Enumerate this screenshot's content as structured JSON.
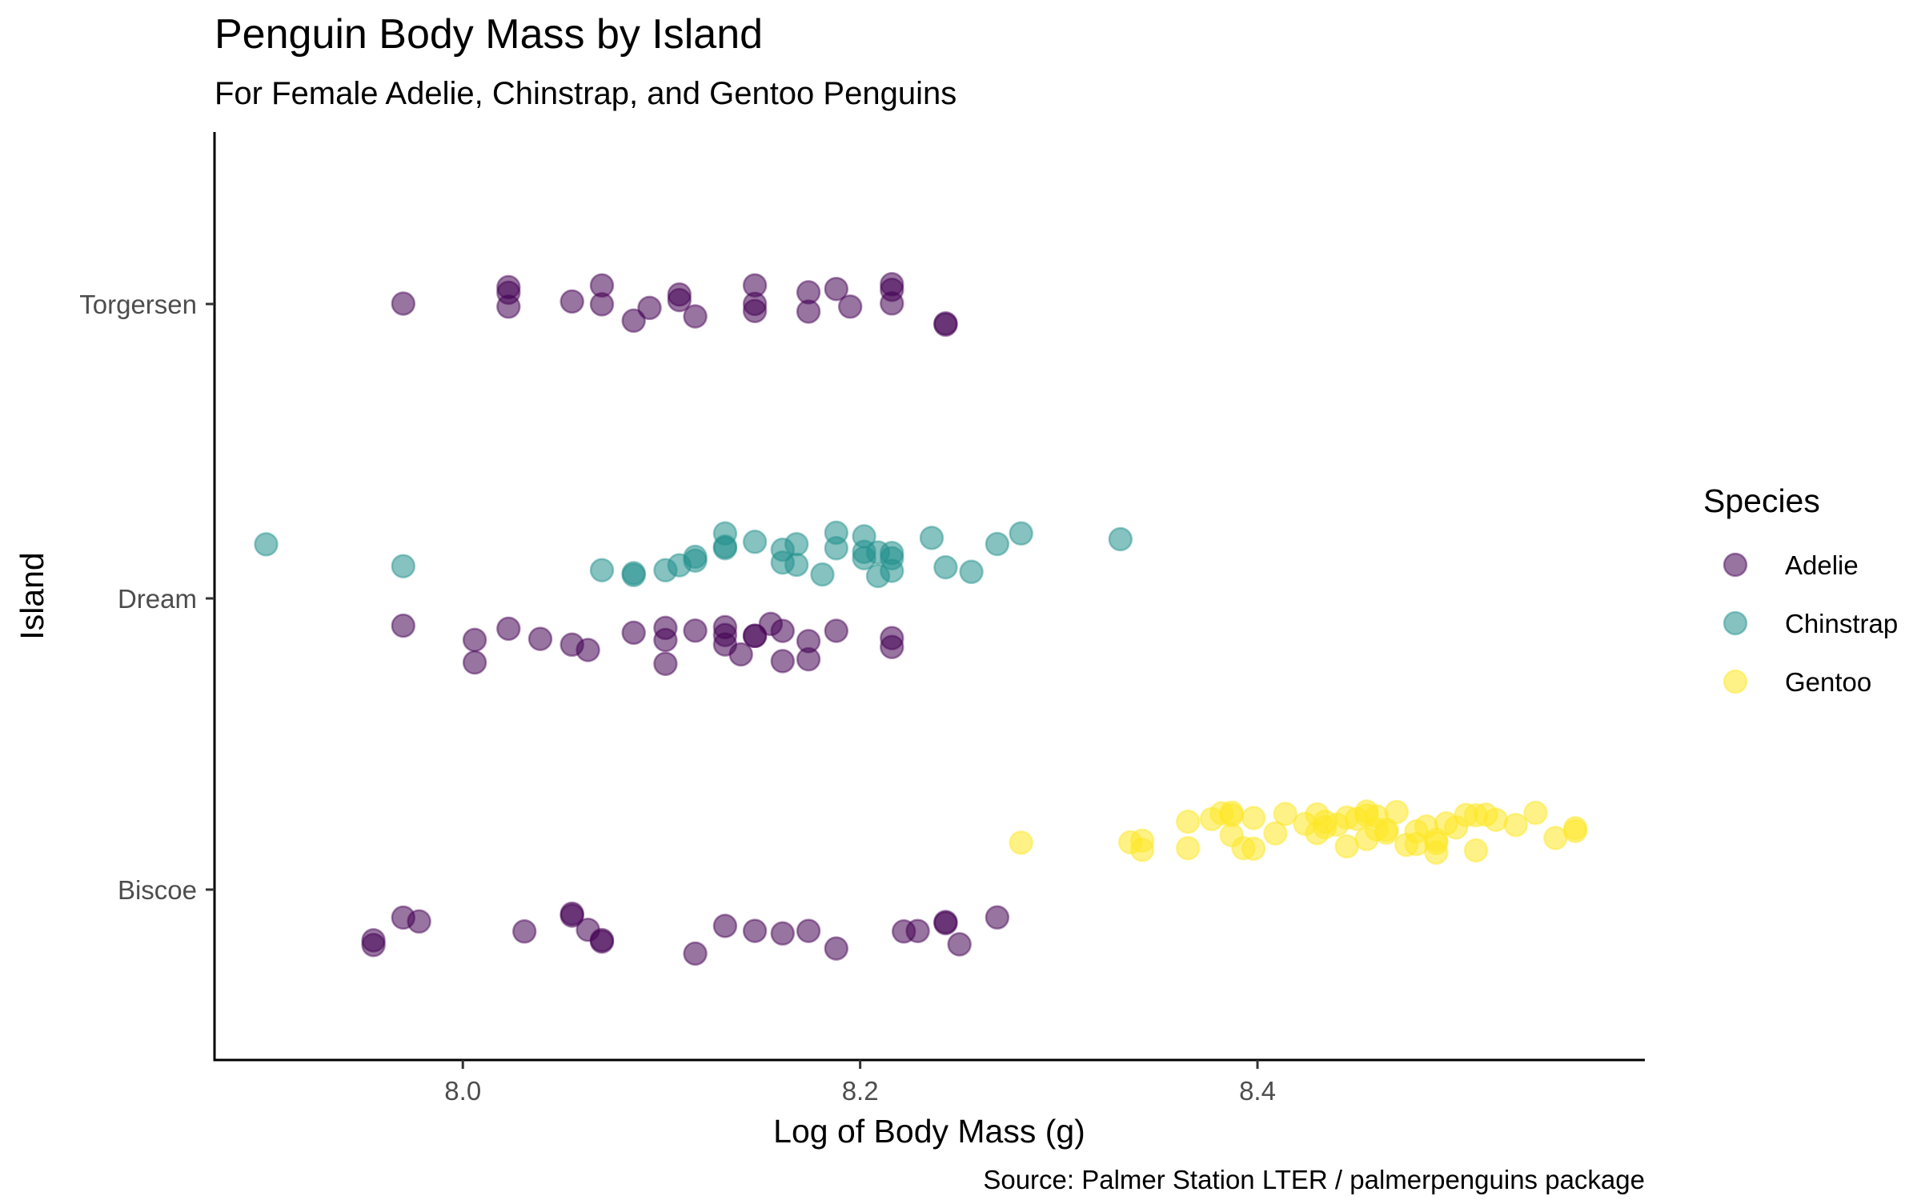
{
  "chart_data": {
    "type": "scatter",
    "title": "Penguin Body Mass by Island",
    "subtitle": "For Female Adelie, Chinstrap, and Gentoo Penguins",
    "xlabel": "Log of Body Mass (g)",
    "ylabel": "Island",
    "caption": "Source: Palmer Station LTER / palmerpenguins package",
    "xlim": [
      7.875,
      8.595
    ],
    "x_ticks": [
      "8.0",
      "8.2",
      "8.4"
    ],
    "x_tick_values": [
      8.0,
      8.2,
      8.4
    ],
    "categories": [
      "Torgersen",
      "Dream",
      "Biscoe"
    ],
    "grid": false,
    "legend": {
      "title": "Species",
      "position": "right"
    },
    "colors": {
      "Adelie": "#440154",
      "Chinstrap": "#21908C",
      "Gentoo": "#FDE725"
    },
    "point_alpha": 0.55,
    "series": [
      {
        "name": "Adelie",
        "color": "#440154",
        "points": [
          {
            "x": 7.97,
            "y": "Torgersen"
          },
          {
            "x": 8.023,
            "y": "Torgersen"
          },
          {
            "x": 8.023,
            "y": "Torgersen"
          },
          {
            "x": 8.023,
            "y": "Torgersen"
          },
          {
            "x": 8.055,
            "y": "Torgersen"
          },
          {
            "x": 8.07,
            "y": "Torgersen"
          },
          {
            "x": 8.07,
            "y": "Torgersen"
          },
          {
            "x": 8.086,
            "y": "Torgersen"
          },
          {
            "x": 8.094,
            "y": "Torgersen"
          },
          {
            "x": 8.109,
            "y": "Torgersen"
          },
          {
            "x": 8.109,
            "y": "Torgersen"
          },
          {
            "x": 8.117,
            "y": "Torgersen"
          },
          {
            "x": 8.147,
            "y": "Torgersen"
          },
          {
            "x": 8.147,
            "y": "Torgersen"
          },
          {
            "x": 8.147,
            "y": "Torgersen"
          },
          {
            "x": 8.174,
            "y": "Torgersen"
          },
          {
            "x": 8.174,
            "y": "Torgersen"
          },
          {
            "x": 8.188,
            "y": "Torgersen"
          },
          {
            "x": 8.195,
            "y": "Torgersen"
          },
          {
            "x": 8.216,
            "y": "Torgersen"
          },
          {
            "x": 8.216,
            "y": "Torgersen"
          },
          {
            "x": 8.216,
            "y": "Torgersen"
          },
          {
            "x": 8.243,
            "y": "Torgersen"
          },
          {
            "x": 8.243,
            "y": "Torgersen"
          },
          {
            "x": 7.97,
            "y": "Dream"
          },
          {
            "x": 8.006,
            "y": "Dream"
          },
          {
            "x": 8.006,
            "y": "Dream"
          },
          {
            "x": 8.023,
            "y": "Dream"
          },
          {
            "x": 8.039,
            "y": "Dream"
          },
          {
            "x": 8.055,
            "y": "Dream"
          },
          {
            "x": 8.063,
            "y": "Dream"
          },
          {
            "x": 8.086,
            "y": "Dream"
          },
          {
            "x": 8.102,
            "y": "Dream"
          },
          {
            "x": 8.102,
            "y": "Dream"
          },
          {
            "x": 8.102,
            "y": "Dream"
          },
          {
            "x": 8.117,
            "y": "Dream"
          },
          {
            "x": 8.132,
            "y": "Dream"
          },
          {
            "x": 8.132,
            "y": "Dream"
          },
          {
            "x": 8.132,
            "y": "Dream"
          },
          {
            "x": 8.14,
            "y": "Dream"
          },
          {
            "x": 8.147,
            "y": "Dream"
          },
          {
            "x": 8.147,
            "y": "Dream"
          },
          {
            "x": 8.155,
            "y": "Dream"
          },
          {
            "x": 8.161,
            "y": "Dream"
          },
          {
            "x": 8.161,
            "y": "Dream"
          },
          {
            "x": 8.174,
            "y": "Dream"
          },
          {
            "x": 8.174,
            "y": "Dream"
          },
          {
            "x": 8.188,
            "y": "Dream"
          },
          {
            "x": 8.216,
            "y": "Dream"
          },
          {
            "x": 8.216,
            "y": "Dream"
          },
          {
            "x": 7.955,
            "y": "Biscoe"
          },
          {
            "x": 7.955,
            "y": "Biscoe"
          },
          {
            "x": 7.97,
            "y": "Biscoe"
          },
          {
            "x": 7.978,
            "y": "Biscoe"
          },
          {
            "x": 8.031,
            "y": "Biscoe"
          },
          {
            "x": 8.055,
            "y": "Biscoe"
          },
          {
            "x": 8.055,
            "y": "Biscoe"
          },
          {
            "x": 8.063,
            "y": "Biscoe"
          },
          {
            "x": 8.07,
            "y": "Biscoe"
          },
          {
            "x": 8.07,
            "y": "Biscoe"
          },
          {
            "x": 8.117,
            "y": "Biscoe"
          },
          {
            "x": 8.132,
            "y": "Biscoe"
          },
          {
            "x": 8.147,
            "y": "Biscoe"
          },
          {
            "x": 8.161,
            "y": "Biscoe"
          },
          {
            "x": 8.174,
            "y": "Biscoe"
          },
          {
            "x": 8.188,
            "y": "Biscoe"
          },
          {
            "x": 8.222,
            "y": "Biscoe"
          },
          {
            "x": 8.229,
            "y": "Biscoe"
          },
          {
            "x": 8.243,
            "y": "Biscoe"
          },
          {
            "x": 8.243,
            "y": "Biscoe"
          },
          {
            "x": 8.25,
            "y": "Biscoe"
          },
          {
            "x": 8.269,
            "y": "Biscoe"
          }
        ]
      },
      {
        "name": "Chinstrap",
        "color": "#21908C",
        "points": [
          {
            "x": 7.901,
            "y": "Dream"
          },
          {
            "x": 7.97,
            "y": "Dream"
          },
          {
            "x": 8.07,
            "y": "Dream"
          },
          {
            "x": 8.086,
            "y": "Dream"
          },
          {
            "x": 8.086,
            "y": "Dream"
          },
          {
            "x": 8.102,
            "y": "Dream"
          },
          {
            "x": 8.109,
            "y": "Dream"
          },
          {
            "x": 8.117,
            "y": "Dream"
          },
          {
            "x": 8.117,
            "y": "Dream"
          },
          {
            "x": 8.132,
            "y": "Dream"
          },
          {
            "x": 8.132,
            "y": "Dream"
          },
          {
            "x": 8.132,
            "y": "Dream"
          },
          {
            "x": 8.147,
            "y": "Dream"
          },
          {
            "x": 8.161,
            "y": "Dream"
          },
          {
            "x": 8.161,
            "y": "Dream"
          },
          {
            "x": 8.168,
            "y": "Dream"
          },
          {
            "x": 8.168,
            "y": "Dream"
          },
          {
            "x": 8.181,
            "y": "Dream"
          },
          {
            "x": 8.188,
            "y": "Dream"
          },
          {
            "x": 8.188,
            "y": "Dream"
          },
          {
            "x": 8.202,
            "y": "Dream"
          },
          {
            "x": 8.202,
            "y": "Dream"
          },
          {
            "x": 8.202,
            "y": "Dream"
          },
          {
            "x": 8.209,
            "y": "Dream"
          },
          {
            "x": 8.209,
            "y": "Dream"
          },
          {
            "x": 8.216,
            "y": "Dream"
          },
          {
            "x": 8.216,
            "y": "Dream"
          },
          {
            "x": 8.216,
            "y": "Dream"
          },
          {
            "x": 8.236,
            "y": "Dream"
          },
          {
            "x": 8.243,
            "y": "Dream"
          },
          {
            "x": 8.256,
            "y": "Dream"
          },
          {
            "x": 8.269,
            "y": "Dream"
          },
          {
            "x": 8.281,
            "y": "Dream"
          },
          {
            "x": 8.331,
            "y": "Dream"
          }
        ]
      },
      {
        "name": "Gentoo",
        "color": "#FDE725",
        "points": [
          {
            "x": 8.281,
            "y": "Biscoe"
          },
          {
            "x": 8.336,
            "y": "Biscoe"
          },
          {
            "x": 8.342,
            "y": "Biscoe"
          },
          {
            "x": 8.342,
            "y": "Biscoe"
          },
          {
            "x": 8.365,
            "y": "Biscoe"
          },
          {
            "x": 8.365,
            "y": "Biscoe"
          },
          {
            "x": 8.377,
            "y": "Biscoe"
          },
          {
            "x": 8.382,
            "y": "Biscoe"
          },
          {
            "x": 8.387,
            "y": "Biscoe"
          },
          {
            "x": 8.387,
            "y": "Biscoe"
          },
          {
            "x": 8.387,
            "y": "Biscoe"
          },
          {
            "x": 8.393,
            "y": "Biscoe"
          },
          {
            "x": 8.398,
            "y": "Biscoe"
          },
          {
            "x": 8.398,
            "y": "Biscoe"
          },
          {
            "x": 8.409,
            "y": "Biscoe"
          },
          {
            "x": 8.414,
            "y": "Biscoe"
          },
          {
            "x": 8.424,
            "y": "Biscoe"
          },
          {
            "x": 8.43,
            "y": "Biscoe"
          },
          {
            "x": 8.43,
            "y": "Biscoe"
          },
          {
            "x": 8.434,
            "y": "Biscoe"
          },
          {
            "x": 8.434,
            "y": "Biscoe"
          },
          {
            "x": 8.44,
            "y": "Biscoe"
          },
          {
            "x": 8.445,
            "y": "Biscoe"
          },
          {
            "x": 8.445,
            "y": "Biscoe"
          },
          {
            "x": 8.45,
            "y": "Biscoe"
          },
          {
            "x": 8.455,
            "y": "Biscoe"
          },
          {
            "x": 8.455,
            "y": "Biscoe"
          },
          {
            "x": 8.455,
            "y": "Biscoe"
          },
          {
            "x": 8.46,
            "y": "Biscoe"
          },
          {
            "x": 8.46,
            "y": "Biscoe"
          },
          {
            "x": 8.465,
            "y": "Biscoe"
          },
          {
            "x": 8.465,
            "y": "Biscoe"
          },
          {
            "x": 8.47,
            "y": "Biscoe"
          },
          {
            "x": 8.475,
            "y": "Biscoe"
          },
          {
            "x": 8.48,
            "y": "Biscoe"
          },
          {
            "x": 8.48,
            "y": "Biscoe"
          },
          {
            "x": 8.485,
            "y": "Biscoe"
          },
          {
            "x": 8.49,
            "y": "Biscoe"
          },
          {
            "x": 8.49,
            "y": "Biscoe"
          },
          {
            "x": 8.49,
            "y": "Biscoe"
          },
          {
            "x": 8.495,
            "y": "Biscoe"
          },
          {
            "x": 8.5,
            "y": "Biscoe"
          },
          {
            "x": 8.505,
            "y": "Biscoe"
          },
          {
            "x": 8.51,
            "y": "Biscoe"
          },
          {
            "x": 8.51,
            "y": "Biscoe"
          },
          {
            "x": 8.515,
            "y": "Biscoe"
          },
          {
            "x": 8.52,
            "y": "Biscoe"
          },
          {
            "x": 8.53,
            "y": "Biscoe"
          },
          {
            "x": 8.54,
            "y": "Biscoe"
          },
          {
            "x": 8.55,
            "y": "Biscoe"
          },
          {
            "x": 8.56,
            "y": "Biscoe"
          },
          {
            "x": 8.56,
            "y": "Biscoe"
          }
        ]
      }
    ]
  }
}
